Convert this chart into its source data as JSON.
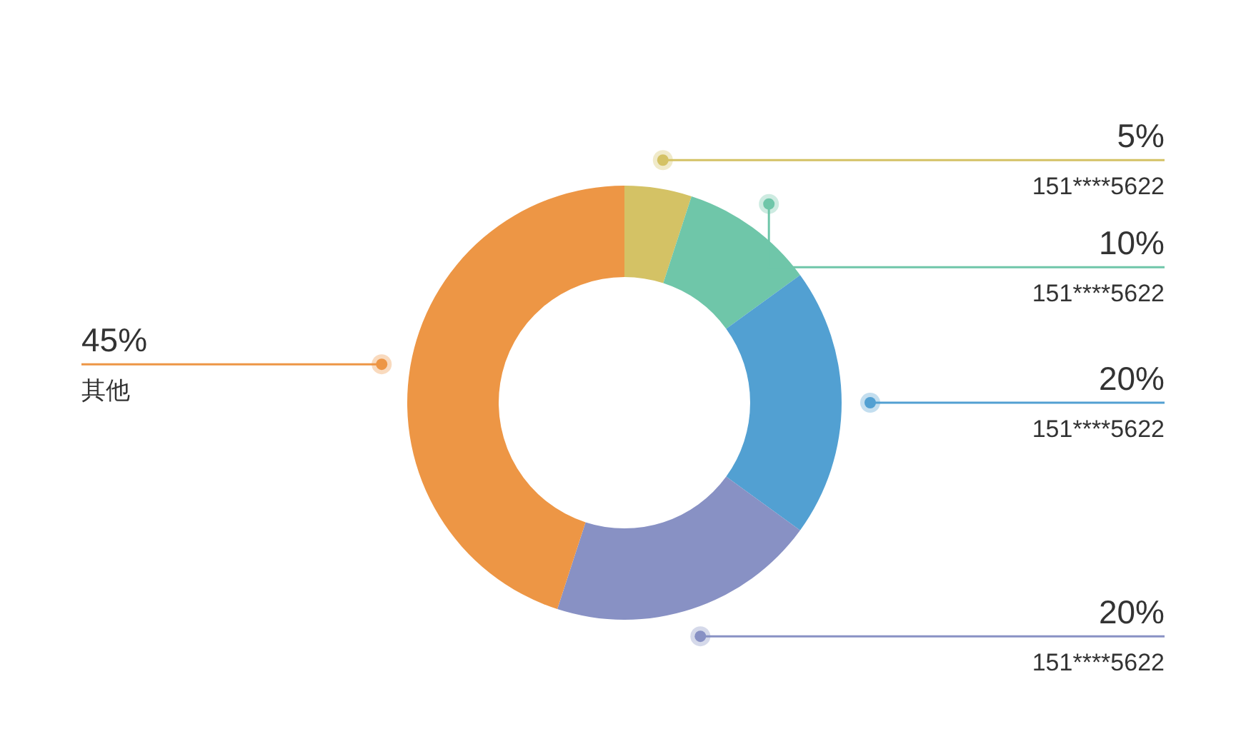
{
  "chart_data": {
    "type": "donut",
    "categories": [
      "151****5622",
      "151****5622",
      "151****5622",
      "151****5622",
      "其他"
    ],
    "values": [
      5,
      10,
      20,
      20,
      45
    ],
    "colors": [
      "#d4c265",
      "#6fc6a9",
      "#52a0d2",
      "#8891c4",
      "#ed9645"
    ],
    "value_labels": [
      "5%",
      "10%",
      "20%",
      "20%",
      "45%"
    ]
  }
}
